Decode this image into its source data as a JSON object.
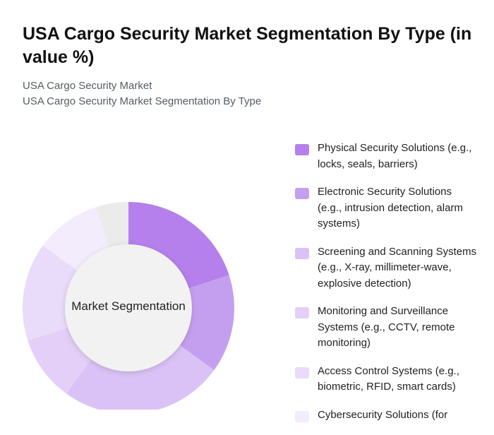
{
  "title": "USA Cargo Security Market Segmentation By Type (in value %)",
  "subtitles": [
    "USA Cargo Security Market",
    "USA Cargo Security Market Segmentation By Type"
  ],
  "chart_data": {
    "type": "pie",
    "variant": "donut",
    "center_label": "Market Segmentation",
    "legend_position": "right",
    "categories": [
      "Physical Security Solutions (e.g., locks, seals, barriers)",
      "Electronic Security Solutions (e.g., intrusion detection, alarm systems)",
      "Screening and Scanning Systems (e.g., X-ray, millimeter-wave, explosive detection)",
      "Monitoring and Surveillance Systems (e.g., CCTV, remote monitoring)",
      "Access Control Systems (e.g., biometric, RFID, smart cards)",
      "Cybersecurity Solutions (for",
      ""
    ],
    "values": [
      20,
      15,
      25,
      10,
      15,
      10,
      5
    ],
    "colors": [
      "#b580eb",
      "#c59fef",
      "#dbc2f6",
      "#e3cff8",
      "#e9dbfa",
      "#f3ecfc",
      "#ebebeb"
    ]
  }
}
